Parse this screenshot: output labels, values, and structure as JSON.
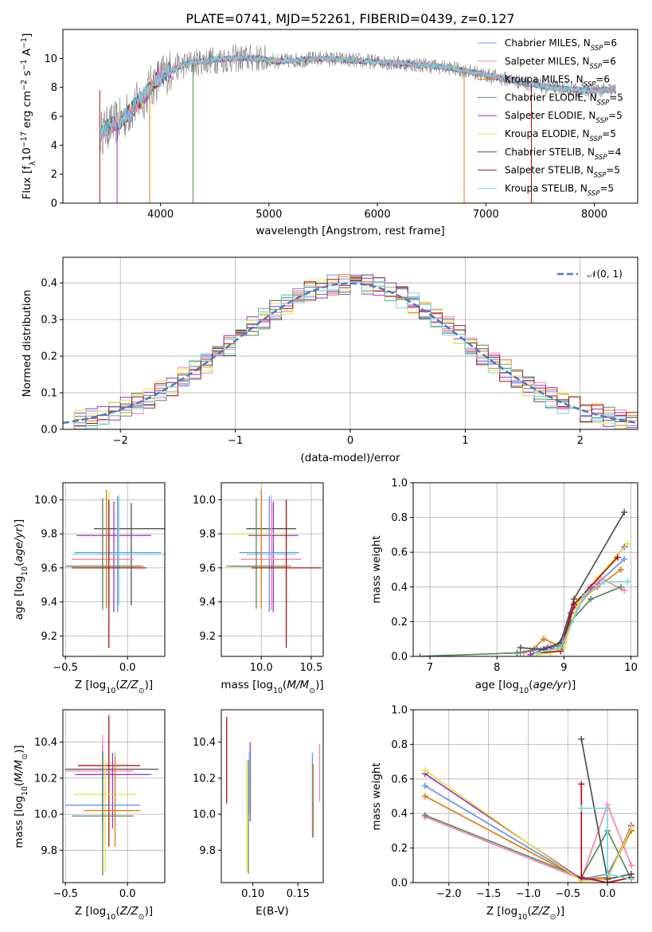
{
  "title": "PLATE=0741, MJD=52261, FIBERID=0439, z=0.127",
  "colors": {
    "chabrier_miles": "#6495ed",
    "salpeter_miles": "#ff80b0",
    "kroupa_miles": "#e07b10",
    "chabrier_elodie": "#5a8a5a",
    "salpeter_elodie": "#9b30c0",
    "kroupa_elodie": "#e6e640",
    "chabrier_stelib": "#505050",
    "salpeter_stelib": "#b01010",
    "kroupa_stelib": "#70d8e0"
  },
  "chart_data": [
    {
      "id": "spectrum",
      "type": "line",
      "xlabel": "wavelength [Angstrom, rest frame]",
      "ylabel": "Flux [f_λ 10^-17 erg cm^-2 s^-1 A^-1]",
      "xlim": [
        3100,
        8400
      ],
      "ylim": [
        0,
        12
      ],
      "xticks": [
        4000,
        5000,
        6000,
        7000,
        8000
      ],
      "yticks": [
        0,
        2,
        4,
        6,
        8,
        10
      ],
      "legend_position": "top-right",
      "legend": [
        {
          "key": "chabrier_miles",
          "text": "Chabrier MILES, N",
          "sub": "SSP",
          "tail": "=6"
        },
        {
          "key": "salpeter_miles",
          "text": "Salpeter MILES, N",
          "sub": "SSP",
          "tail": "=6"
        },
        {
          "key": "kroupa_miles",
          "text": "Kroupa MILES, N",
          "sub": "SSP",
          "tail": "=6"
        },
        {
          "key": "chabrier_elodie",
          "text": "Chabrier ELODIE, N",
          "sub": "SSP",
          "tail": "=5"
        },
        {
          "key": "salpeter_elodie",
          "text": "Salpeter ELODIE, N",
          "sub": "SSP",
          "tail": "=5"
        },
        {
          "key": "kroupa_elodie",
          "text": "Kroupa ELODIE, N",
          "sub": "SSP",
          "tail": "=5"
        },
        {
          "key": "chabrier_stelib",
          "text": "Chabrier STELIB, N",
          "sub": "SSP",
          "tail": "=4"
        },
        {
          "key": "salpeter_stelib",
          "text": "Salpeter STELIB, N",
          "sub": "SSP",
          "tail": "=5"
        },
        {
          "key": "kroupa_stelib",
          "text": "Kroupa STELIB, N",
          "sub": "SSP",
          "tail": "=5"
        }
      ],
      "continuum": [
        [
          3450,
          4.9
        ],
        [
          3550,
          5.4
        ],
        [
          3650,
          5.8
        ],
        [
          3750,
          6.6
        ],
        [
          3850,
          7.4
        ],
        [
          3950,
          8.4
        ],
        [
          4050,
          9.0
        ],
        [
          4150,
          9.4
        ],
        [
          4300,
          9.7
        ],
        [
          4500,
          9.9
        ],
        [
          4700,
          10.0
        ],
        [
          4900,
          10.0
        ],
        [
          5100,
          9.8
        ],
        [
          5300,
          9.9
        ],
        [
          5500,
          10.0
        ],
        [
          5700,
          9.9
        ],
        [
          5900,
          9.8
        ],
        [
          6100,
          9.7
        ],
        [
          6300,
          9.6
        ],
        [
          6500,
          9.5
        ],
        [
          6700,
          9.3
        ],
        [
          6900,
          9.0
        ],
        [
          7100,
          8.7
        ],
        [
          7300,
          8.4
        ],
        [
          7500,
          8.1
        ],
        [
          7700,
          7.9
        ],
        [
          7900,
          7.8
        ],
        [
          8100,
          7.8
        ],
        [
          8200,
          7.8
        ]
      ],
      "dropouts": [
        3440,
        3600,
        3900,
        4300,
        6800,
        7420
      ]
    },
    {
      "id": "residuals",
      "type": "line",
      "xlabel": "(data-model)/error",
      "ylabel": "Normed distribution",
      "xlim": [
        -2.5,
        2.5
      ],
      "ylim": [
        0,
        0.47
      ],
      "xticks": [
        -2,
        -1,
        0,
        1,
        2
      ],
      "yticks": [
        0.0,
        0.1,
        0.2,
        0.3,
        0.4
      ],
      "grid": true,
      "legend_position": "top-right",
      "legend": {
        "label": "𝒩(0, 1)",
        "color": "#4a78c8"
      },
      "bin_width": 0.1
    },
    {
      "id": "age_vs_Z",
      "type": "scatter",
      "xlabel": "Z [log10(Z/Z⊙)]",
      "ylabel": "age [log10(age/yr)]",
      "xlim": [
        -0.52,
        0.3
      ],
      "ylim": [
        9.08,
        10.1
      ],
      "xticks": [
        -0.5,
        0.0
      ],
      "yticks": [
        9.2,
        9.4,
        9.6,
        9.8,
        10.0
      ],
      "grid": true,
      "points": [
        {
          "key": "chabrier_stelib",
          "x": 0.03,
          "y": 9.83,
          "xerr": [
            0.3,
            0.3
          ],
          "yerr": [
            0.45,
            0.15
          ]
        },
        {
          "key": "salpeter_elodie",
          "x": -0.11,
          "y": 9.79,
          "xerr": [
            0.3,
            0.3
          ],
          "yerr": [
            0.45,
            0.2
          ]
        },
        {
          "key": "chabrier_miles",
          "x": -0.08,
          "y": 9.69,
          "xerr": [
            0.35,
            0.35
          ],
          "yerr": [
            0.35,
            0.33
          ]
        },
        {
          "key": "kroupa_stelib",
          "x": -0.07,
          "y": 9.68,
          "xerr": [
            0.37,
            0.37
          ],
          "yerr": [
            0.3,
            0.35
          ]
        },
        {
          "key": "salpeter_miles",
          "x": -0.2,
          "y": 9.65,
          "xerr": [
            0.25,
            0.25
          ],
          "yerr": [
            0.3,
            0.35
          ]
        },
        {
          "key": "kroupa_miles",
          "x": -0.17,
          "y": 9.61,
          "xerr": [
            0.3,
            0.3
          ],
          "yerr": [
            0.25,
            0.45
          ]
        },
        {
          "key": "chabrier_elodie",
          "x": -0.2,
          "y": 9.61,
          "xerr": [
            0.3,
            0.3
          ],
          "yerr": [
            0.25,
            0.4
          ]
        },
        {
          "key": "kroupa_elodie",
          "x": -0.15,
          "y": 9.6,
          "xerr": [
            0.25,
            0.25
          ],
          "yerr": [
            0.25,
            0.45
          ]
        },
        {
          "key": "salpeter_stelib",
          "x": -0.15,
          "y": 9.6,
          "xerr": [
            0.3,
            0.3
          ],
          "yerr": [
            0.47,
            0.4
          ]
        }
      ]
    },
    {
      "id": "age_vs_mass",
      "type": "scatter",
      "xlabel": "mass [log10(M/M⊙)]",
      "xlim": [
        9.6,
        10.62
      ],
      "ylim": [
        9.08,
        10.1
      ],
      "xticks": [
        10.0,
        10.5
      ],
      "yticks": [
        9.2,
        9.4,
        9.6,
        9.8,
        10.0
      ],
      "grid": true,
      "points": [
        {
          "key": "chabrier_stelib",
          "x": 10.1,
          "y": 9.83,
          "xerr": [
            0.25,
            0.25
          ],
          "yerr": [
            0.45,
            0.15
          ]
        },
        {
          "key": "salpeter_elodie",
          "x": 10.12,
          "y": 9.79,
          "xerr": [
            0.25,
            0.25
          ],
          "yerr": [
            0.45,
            0.2
          ]
        },
        {
          "key": "kroupa_elodie",
          "x": 10.0,
          "y": 9.8,
          "xerr": [
            0.3,
            0.3
          ],
          "yerr": [
            0.3,
            0.2
          ]
        },
        {
          "key": "chabrier_miles",
          "x": 10.08,
          "y": 9.69,
          "xerr": [
            0.3,
            0.3
          ],
          "yerr": [
            0.35,
            0.33
          ]
        },
        {
          "key": "kroupa_stelib",
          "x": 10.1,
          "y": 9.68,
          "xerr": [
            0.25,
            0.25
          ],
          "yerr": [
            0.3,
            0.35
          ]
        },
        {
          "key": "salpeter_miles",
          "x": 10.1,
          "y": 9.65,
          "xerr": [
            0.3,
            0.3
          ],
          "yerr": [
            0.3,
            0.35
          ]
        },
        {
          "key": "kroupa_miles",
          "x": 10.0,
          "y": 9.61,
          "xerr": [
            0.3,
            0.3
          ],
          "yerr": [
            0.25,
            0.45
          ]
        },
        {
          "key": "chabrier_elodie",
          "x": 9.95,
          "y": 9.61,
          "xerr": [
            0.3,
            0.3
          ],
          "yerr": [
            0.25,
            0.4
          ]
        },
        {
          "key": "salpeter_stelib",
          "x": 10.25,
          "y": 9.6,
          "xerr": [
            0.35,
            0.35
          ],
          "yerr": [
            0.47,
            0.4
          ]
        }
      ]
    },
    {
      "id": "weight_vs_age",
      "type": "line",
      "xlabel": "age [log10(age/yr)]",
      "ylabel": "mass weight",
      "xlim": [
        6.75,
        10.1
      ],
      "ylim": [
        0,
        1
      ],
      "xticks": [
        7,
        8,
        9,
        10
      ],
      "yticks": [
        0.0,
        0.2,
        0.4,
        0.6,
        0.8,
        1.0
      ],
      "grid": true,
      "series": [
        {
          "key": "chabrier_miles",
          "x": [
            8.35,
            8.55,
            8.85,
            9.0,
            9.15,
            9.5,
            9.9
          ],
          "y": [
            0.02,
            0.04,
            0.06,
            0.08,
            0.3,
            0.42,
            0.56
          ]
        },
        {
          "key": "salpeter_miles",
          "x": [
            8.4,
            8.6,
            8.8,
            9.0,
            9.2,
            9.55,
            9.9
          ],
          "y": [
            0.02,
            0.04,
            0.06,
            0.08,
            0.28,
            0.45,
            0.38
          ]
        },
        {
          "key": "kroupa_miles",
          "x": [
            8.3,
            8.5,
            8.7,
            9.0,
            9.15,
            9.5,
            9.85
          ],
          "y": [
            0.02,
            0.03,
            0.1,
            0.05,
            0.3,
            0.4,
            0.5
          ]
        },
        {
          "key": "chabrier_elodie",
          "x": [
            6.85,
            8.3,
            8.6,
            8.9,
            9.1,
            9.4,
            9.85
          ],
          "y": [
            0.0,
            0.02,
            0.04,
            0.06,
            0.2,
            0.33,
            0.4
          ]
        },
        {
          "key": "salpeter_elodie",
          "x": [
            8.5,
            8.75,
            8.95,
            9.1,
            9.4,
            9.9
          ],
          "y": [
            0.01,
            0.05,
            0.04,
            0.25,
            0.4,
            0.63
          ]
        },
        {
          "key": "kroupa_elodie",
          "x": [
            8.6,
            8.8,
            9.0,
            9.2,
            9.5,
            9.95
          ],
          "y": [
            0.01,
            0.02,
            0.05,
            0.3,
            0.45,
            0.65
          ]
        },
        {
          "key": "chabrier_stelib",
          "x": [
            8.35,
            8.7,
            8.95,
            9.15,
            9.9
          ],
          "y": [
            0.05,
            0.04,
            0.08,
            0.33,
            0.83
          ]
        },
        {
          "key": "salpeter_stelib",
          "x": [
            8.6,
            8.95,
            9.15,
            9.8
          ],
          "y": [
            0.02,
            0.03,
            0.3,
            0.57
          ]
        },
        {
          "key": "kroupa_stelib",
          "x": [
            8.6,
            8.95,
            9.3,
            9.6,
            9.95
          ],
          "y": [
            0.02,
            0.05,
            0.35,
            0.43,
            0.43
          ]
        }
      ]
    },
    {
      "id": "mass_vs_Z",
      "type": "scatter",
      "xlabel": "Z [log10(Z/Z⊙)]",
      "ylabel": "mass [log10(M/M⊙)]",
      "xlim": [
        -0.52,
        0.3
      ],
      "ylim": [
        9.62,
        10.58
      ],
      "xticks": [
        -0.5,
        0.0
      ],
      "yticks": [
        9.8,
        10.0,
        10.2,
        10.4
      ],
      "grid": true,
      "points": [
        {
          "key": "salpeter_stelib",
          "x": -0.15,
          "y": 10.27,
          "xerr": [
            0.25,
            0.25
          ],
          "yerr": [
            0.45,
            0.28
          ]
        },
        {
          "key": "chabrier_stelib",
          "x": -0.2,
          "y": 10.25,
          "xerr": [
            0.3,
            0.45
          ],
          "yerr": [
            0.3,
            0.13
          ]
        },
        {
          "key": "salpeter_miles",
          "x": -0.2,
          "y": 10.24,
          "xerr": [
            0.3,
            0.25
          ],
          "yerr": [
            0.3,
            0.2
          ]
        },
        {
          "key": "kroupa_stelib",
          "x": -0.1,
          "y": 10.22,
          "xerr": [
            0.3,
            0.3
          ],
          "yerr": [
            0.25,
            0.13
          ]
        },
        {
          "key": "salpeter_elodie",
          "x": -0.12,
          "y": 10.22,
          "xerr": [
            0.3,
            0.3
          ],
          "yerr": [
            0.3,
            0.12
          ]
        },
        {
          "key": "kroupa_elodie",
          "x": -0.18,
          "y": 10.11,
          "xerr": [
            0.25,
            0.25
          ],
          "yerr": [
            0.43,
            0.2
          ]
        },
        {
          "key": "chabrier_miles",
          "x": -0.2,
          "y": 10.05,
          "xerr": [
            0.3,
            0.3
          ],
          "yerr": [
            0.18,
            0.3
          ]
        },
        {
          "key": "kroupa_miles",
          "x": -0.1,
          "y": 10.02,
          "xerr": [
            0.25,
            0.2
          ],
          "yerr": [
            0.2,
            0.3
          ]
        },
        {
          "key": "chabrier_elodie",
          "x": -0.2,
          "y": 9.99,
          "xerr": [
            0.25,
            0.25
          ],
          "yerr": [
            0.33,
            0.35
          ]
        }
      ]
    },
    {
      "id": "mass_vs_ebv",
      "type": "scatter",
      "xlabel": "E(B-V)",
      "xlim": [
        0.065,
        0.178
      ],
      "ylim": [
        9.62,
        10.58
      ],
      "xticks": [
        0.1,
        0.15
      ],
      "yticks": [
        9.8,
        10.0,
        10.2,
        10.4
      ],
      "points": [
        {
          "key": "salpeter_stelib",
          "x": 0.071,
          "y": 10.3,
          "yerr": [
            0.24,
            0.24
          ]
        },
        {
          "key": "kroupa_elodie",
          "x": 0.093,
          "y": 10.0,
          "yerr": [
            0.32,
            0.3
          ]
        },
        {
          "key": "chabrier_elodie",
          "x": 0.095,
          "y": 10.0,
          "yerr": [
            0.33,
            0.3
          ]
        },
        {
          "key": "salpeter_elodie",
          "x": 0.097,
          "y": 10.2,
          "yerr": [
            0.24,
            0.2
          ]
        },
        {
          "key": "kroupa_stelib",
          "x": 0.096,
          "y": 10.2,
          "yerr": [
            0.2,
            0.15
          ]
        },
        {
          "key": "chabrier_miles",
          "x": 0.166,
          "y": 10.1,
          "yerr": [
            0.23,
            0.24
          ]
        },
        {
          "key": "kroupa_miles",
          "x": 0.167,
          "y": 10.05,
          "yerr": [
            0.18,
            0.23
          ]
        },
        {
          "key": "salpeter_miles",
          "x": 0.174,
          "y": 10.24,
          "yerr": [
            0.17,
            0.15
          ]
        }
      ]
    },
    {
      "id": "weight_vs_Z",
      "type": "line",
      "xlabel": "Z [log10(Z/Z⊙)]",
      "ylabel": "mass weight",
      "xlim": [
        -2.45,
        0.38
      ],
      "ylim": [
        0,
        1
      ],
      "xticks": [
        -2.0,
        -1.5,
        -1.0,
        -0.5,
        0.0
      ],
      "yticks": [
        0.0,
        0.2,
        0.4,
        0.6,
        0.8,
        1.0
      ],
      "grid": true,
      "series": [
        {
          "key": "chabrier_miles",
          "x": [
            -2.3,
            -0.33,
            0.0,
            0.3
          ],
          "y": [
            0.56,
            0.02,
            0.05,
            0.3
          ]
        },
        {
          "key": "salpeter_miles",
          "x": [
            -2.3,
            -0.33,
            0.0,
            0.3
          ],
          "y": [
            0.38,
            0.02,
            0.45,
            0.1
          ]
        },
        {
          "key": "kroupa_miles",
          "x": [
            -2.3,
            -0.33,
            0.0,
            0.3
          ],
          "y": [
            0.5,
            0.02,
            0.03,
            0.3
          ]
        },
        {
          "key": "chabrier_elodie",
          "x": [
            -2.3,
            -0.33,
            0.0,
            0.3
          ],
          "y": [
            0.39,
            0.03,
            0.3,
            0.02
          ]
        },
        {
          "key": "salpeter_elodie",
          "x": [
            -2.3,
            -0.33,
            0.0,
            0.3
          ],
          "y": [
            0.63,
            0.02,
            0.02,
            0.33
          ]
        },
        {
          "key": "kroupa_elodie",
          "x": [
            -2.3,
            -0.33,
            0.0,
            0.3
          ],
          "y": [
            0.65,
            0.01,
            0.02,
            0.32
          ]
        },
        {
          "key": "chabrier_stelib",
          "x": [
            -0.33,
            0.0,
            0.3
          ],
          "y": [
            0.83,
            0.02,
            0.05
          ]
        },
        {
          "key": "salpeter_stelib",
          "x": [
            -0.33,
            -0.33,
            0.0,
            0.3
          ],
          "y": [
            0.57,
            0.03,
            0.0,
            0.03
          ]
        },
        {
          "key": "kroupa_stelib",
          "x": [
            -0.33,
            0.0,
            0.0,
            0.3
          ],
          "y": [
            0.43,
            0.43,
            0.05,
            0.02
          ]
        }
      ]
    }
  ]
}
